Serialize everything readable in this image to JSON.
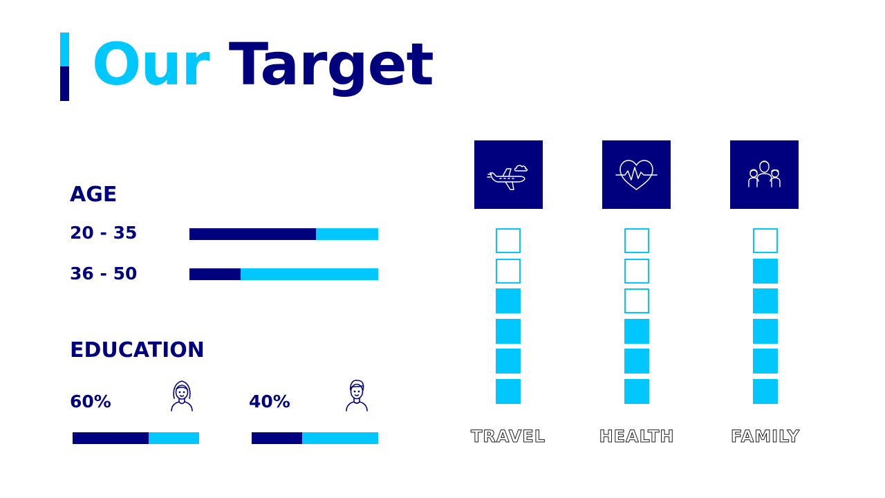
{
  "title": {
    "word1": "Our",
    "word2": "Target"
  },
  "colors": {
    "accent": "#00c8ff",
    "primary": "#00007f",
    "background": "#ffffff"
  },
  "age": {
    "label": "AGE",
    "rows": [
      {
        "label": "20 - 35",
        "fraction": 0.67
      },
      {
        "label": "36 - 50",
        "fraction": 0.27
      }
    ]
  },
  "education": {
    "label": "EDUCATION",
    "items": [
      {
        "value": "60%",
        "fraction": 0.6,
        "icon": "woman-icon"
      },
      {
        "value": "40%",
        "fraction": 0.4,
        "icon": "man-icon"
      }
    ]
  },
  "categories": [
    {
      "label": "TRAVEL",
      "icon": "airplane-icon",
      "filled": 4,
      "total": 6
    },
    {
      "label": "HEALTH",
      "icon": "heart-pulse-icon",
      "filled": 3,
      "total": 6
    },
    {
      "label": "FAMILY",
      "icon": "family-icon",
      "filled": 5,
      "total": 6
    }
  ]
}
